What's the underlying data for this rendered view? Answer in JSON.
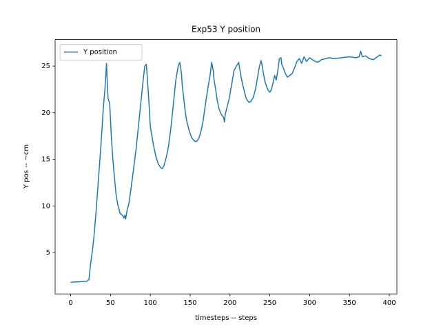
{
  "chart_data": {
    "type": "line",
    "title": "Exp53 Y position",
    "xlabel": "timesteps -- steps",
    "ylabel": "Y pos -- ~cm",
    "x": [
      0,
      5,
      10,
      15,
      20,
      23,
      25,
      27,
      29,
      32,
      35,
      38,
      41,
      43,
      45,
      46,
      47,
      49,
      51,
      53,
      55,
      57,
      59,
      62,
      65,
      67,
      68,
      69,
      71,
      73,
      76,
      79,
      82,
      85,
      88,
      91,
      93,
      95,
      96,
      98,
      100,
      102,
      104,
      107,
      110,
      113,
      115,
      117,
      120,
      123,
      126,
      129,
      132,
      135,
      137,
      139,
      140,
      142,
      144,
      146,
      149,
      152,
      155,
      157,
      159,
      161,
      163,
      166,
      169,
      172,
      175,
      177,
      179,
      180,
      182,
      184,
      186,
      188,
      190,
      192,
      193,
      194,
      196,
      199,
      202,
      205,
      208,
      211,
      212,
      214,
      216,
      218,
      220,
      222,
      224,
      226,
      229,
      232,
      235,
      237,
      239,
      240,
      242,
      244,
      246,
      248,
      250,
      252,
      254,
      256,
      258,
      260,
      262,
      264,
      265,
      267,
      269,
      272,
      275,
      278,
      281,
      284,
      287,
      290,
      293,
      296,
      300,
      305,
      310,
      315,
      320,
      325,
      330,
      340,
      350,
      358,
      362,
      364,
      366,
      370,
      375,
      380,
      385,
      388,
      390
    ],
    "series": [
      {
        "name": "Y position",
        "color": "#1f77b4",
        "values": [
          1.8,
          1.85,
          1.85,
          1.9,
          1.9,
          2.1,
          3.8,
          5.0,
          6.5,
          9.5,
          13,
          16.5,
          20.5,
          22.5,
          25.3,
          23,
          21.5,
          21,
          17.5,
          15,
          13,
          11.2,
          10.2,
          9.2,
          9.0,
          8.7,
          9.0,
          8.6,
          9.6,
          10.2,
          12,
          14,
          16,
          18.5,
          21,
          23.5,
          25,
          25.2,
          24,
          21.5,
          18.5,
          17.5,
          16.5,
          15.3,
          14.5,
          14.1,
          14.0,
          14.3,
          15.2,
          16.5,
          18.5,
          21,
          23.5,
          25,
          25.4,
          24.3,
          23,
          21.5,
          20,
          19,
          18,
          17.3,
          17,
          16.9,
          17,
          17.3,
          17.8,
          19,
          20.8,
          22.5,
          24,
          25.4,
          24.5,
          23.5,
          22.5,
          21.3,
          20.5,
          20,
          19.7,
          19.5,
          19,
          19.8,
          20.5,
          21.5,
          23,
          24.5,
          25,
          25.4,
          24.8,
          23.8,
          23,
          22.3,
          21.6,
          21.3,
          21.1,
          21.2,
          21.6,
          22.5,
          24,
          25,
          25.6,
          25.2,
          24.2,
          23.3,
          22.8,
          22.4,
          22.2,
          22.5,
          23.2,
          24,
          23.5,
          24.5,
          25.8,
          25.9,
          25.2,
          24.8,
          24.3,
          23.8,
          24,
          24.2,
          24.8,
          25.5,
          25.8,
          25.3,
          26,
          25.5,
          25.9,
          25.6,
          25.4,
          25.7,
          25.8,
          25.9,
          25.8,
          25.9,
          26,
          25.9,
          26,
          26.6,
          26,
          26.1,
          25.8,
          25.7,
          26,
          26.2,
          26.1
        ]
      }
    ],
    "xlim": [
      -19.5,
      409.5
    ],
    "ylim": [
      0.56,
      27.84
    ],
    "xticks": [
      0,
      50,
      100,
      150,
      200,
      250,
      300,
      350,
      400
    ],
    "yticks": [
      5,
      10,
      15,
      20,
      25
    ],
    "legend": "upper left",
    "grid": false
  }
}
